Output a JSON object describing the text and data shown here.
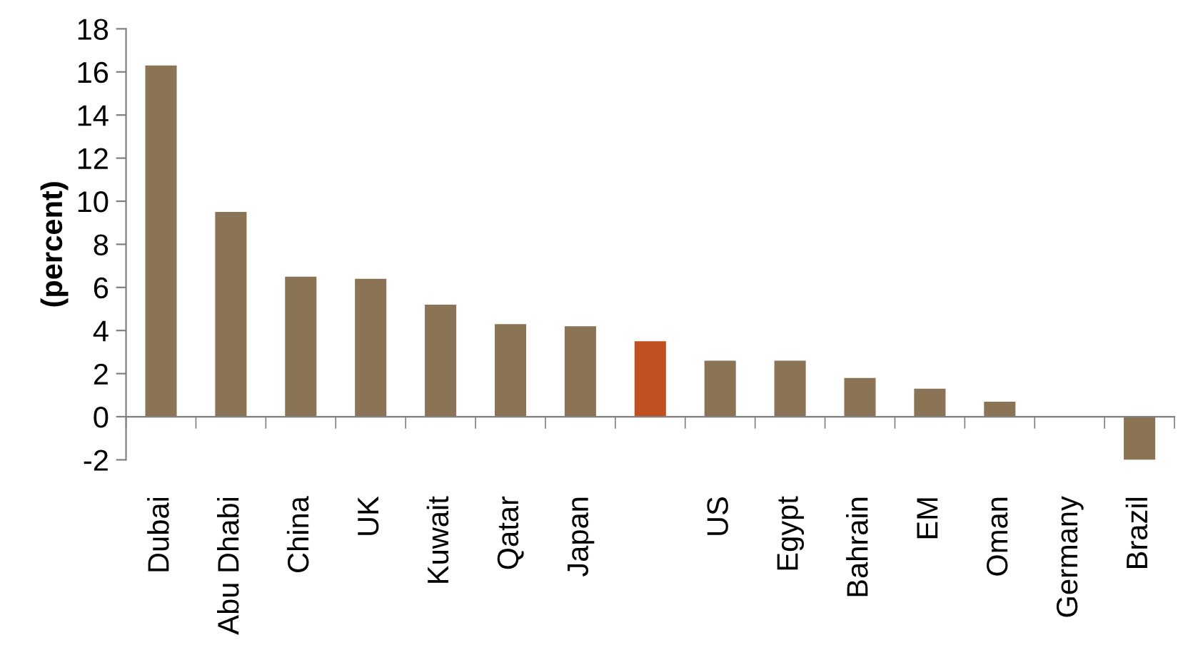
{
  "chart_data": {
    "type": "bar",
    "ylabel": "(percent)",
    "categories": [
      "Dubai",
      "Abu Dhabi",
      "China",
      "UK",
      "Kuwait",
      "Qatar",
      "Japan",
      null,
      "US",
      "Egypt",
      "Bahrain",
      "EM",
      "Oman",
      "Germany",
      "Brazil"
    ],
    "values": [
      16.3,
      9.5,
      6.5,
      6.4,
      5.2,
      4.3,
      4.2,
      3.5,
      2.6,
      2.6,
      1.8,
      1.3,
      0.7,
      0,
      -2.0
    ],
    "colors": [
      "#8b7355",
      "#8b7355",
      "#8b7355",
      "#8b7355",
      "#8b7355",
      "#8b7355",
      "#8b7355",
      "#c0501f",
      "#8b7355",
      "#8b7355",
      "#8b7355",
      "#8b7355",
      "#8b7355",
      "#8b7355",
      "#8b7355"
    ],
    "ylim": [
      -2,
      18
    ],
    "yticks": [
      -2,
      0,
      2,
      4,
      6,
      8,
      10,
      12,
      14,
      16,
      18
    ],
    "legend": false
  }
}
